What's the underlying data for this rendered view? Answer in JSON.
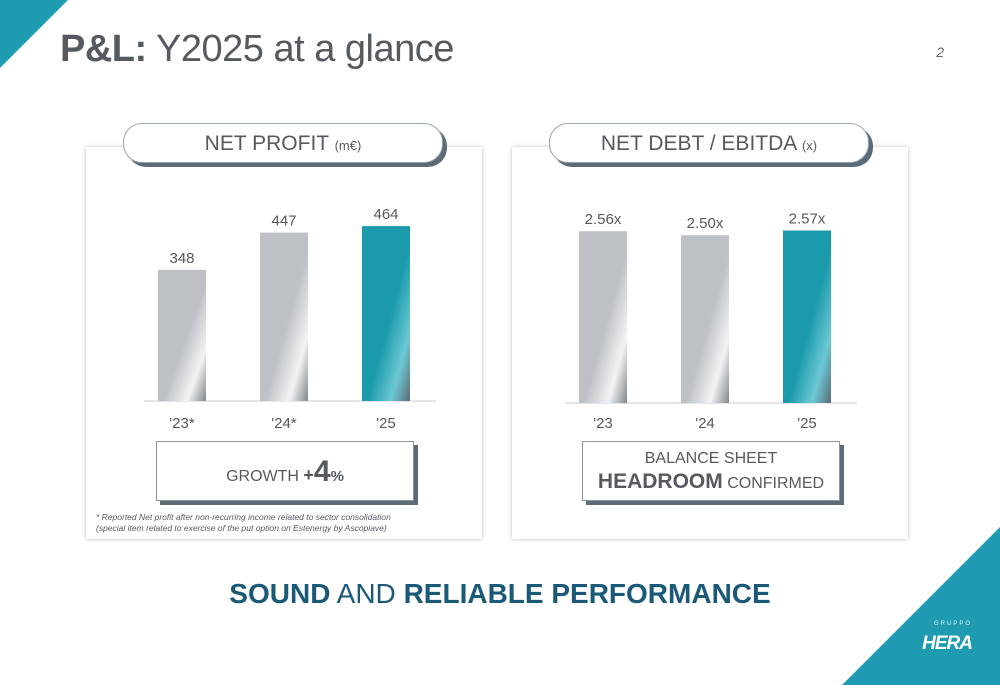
{
  "slide": {
    "title_bold": "P&L:",
    "title_rest": "Y2025 at a glance",
    "page_number": "2",
    "tagline": {
      "part1": "SOUND",
      "part2": "AND",
      "part3": "RELIABLE PERFORMANCE"
    },
    "logo": {
      "small": "GRUPPO",
      "main": "HERA"
    }
  },
  "left_panel": {
    "heading": "NET PROFIT",
    "unit": "(m€)",
    "callout": {
      "prefix": "GROWTH ",
      "plus": "+",
      "value": "4",
      "suffix": "%"
    },
    "footnote": "* Reported Net profit after non-recurring income related to sector consolidation (special item related to exercise of the put option on Estenergy by Ascopiave)"
  },
  "right_panel": {
    "heading": "NET DEBT / EBITDA",
    "unit": "(x)",
    "callout": {
      "line1": "BALANCE SHEET",
      "line2_bold": "HEADROOM",
      "line2_rest": " CONFIRMED"
    }
  },
  "colors": {
    "accent": "#1e9bb0",
    "bar_grey": "#bdc1c6",
    "bar_teal": "#1a9aab",
    "navy": "#1a5a78"
  },
  "chart_data": [
    {
      "type": "bar",
      "title": "NET PROFIT (m€)",
      "categories": [
        "'23*",
        "'24*",
        "'25"
      ],
      "values": [
        348,
        447,
        464
      ],
      "labels": [
        "348",
        "447",
        "464"
      ],
      "highlight_index": 2,
      "ylim": [
        0,
        520
      ]
    },
    {
      "type": "bar",
      "title": "NET DEBT / EBITDA (x)",
      "categories": [
        "'23",
        "'24",
        "'25"
      ],
      "values": [
        2.56,
        2.5,
        2.57
      ],
      "labels": [
        "2.56x",
        "2.50x",
        "2.57x"
      ],
      "highlight_index": 2,
      "ylim": [
        0,
        2.95
      ]
    }
  ]
}
